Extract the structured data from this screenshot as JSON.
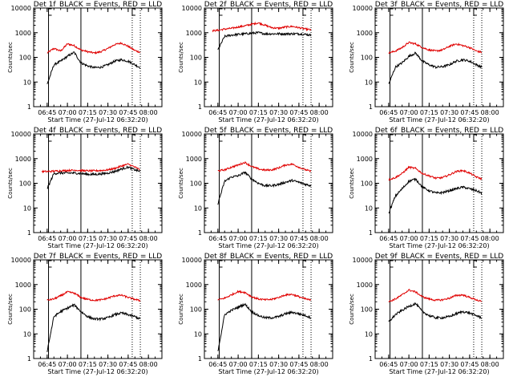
{
  "chart_data": [
    {
      "type": "line",
      "title": "Det 1f_BLACK = Events, RED = LLD",
      "xlabel": "Start Time (27-Jul-12 06:32:20)",
      "ylabel": "Counts/sec",
      "ylim": [
        1,
        10000
      ],
      "yscale": "log",
      "yticks": [
        "1",
        "10",
        "100",
        "1000",
        "10000"
      ],
      "xticks": [
        "06:45",
        "07:00",
        "07:15",
        "07:30",
        "07:45",
        "08:00"
      ],
      "x": [
        "06:41",
        "06:45",
        "06:50",
        "06:55",
        "07:00",
        "07:05",
        "07:10",
        "07:15",
        "07:20",
        "07:25",
        "07:30",
        "07:35",
        "07:40",
        "07:45",
        "07:50",
        "07:54"
      ],
      "series": [
        {
          "name": "LLD",
          "color": "#e00000",
          "values": [
            null,
            150,
            230,
            180,
            350,
            300,
            200,
            170,
            150,
            170,
            230,
            330,
            380,
            280,
            190,
            160
          ]
        },
        {
          "name": "Events",
          "color": "#000000",
          "values": [
            null,
            8,
            50,
            70,
            110,
            160,
            60,
            45,
            38,
            40,
            50,
            70,
            80,
            70,
            50,
            38
          ]
        }
      ],
      "vlines_solid": [
        "06:46",
        "07:10"
      ],
      "vlines_dotted": [
        "07:48",
        "07:54"
      ],
      "markers": [
        "S",
        "E"
      ]
    },
    {
      "type": "line",
      "title": "Det 2f_BLACK = Events, RED = LLD",
      "xlabel": "Start Time (27-Jul-12 06:32:20)",
      "ylabel": "Counts/sec",
      "ylim": [
        1,
        10000
      ],
      "yscale": "log",
      "yticks": [
        "1",
        "10",
        "100",
        "1000",
        "10000"
      ],
      "xticks": [
        "06:45",
        "07:00",
        "07:15",
        "07:30",
        "07:45",
        "08:00"
      ],
      "x": [
        "06:41",
        "06:45",
        "06:50",
        "06:55",
        "07:00",
        "07:05",
        "07:10",
        "07:15",
        "07:20",
        "07:25",
        "07:30",
        "07:35",
        "07:40",
        "07:45",
        "07:50",
        "07:54"
      ],
      "series": [
        {
          "name": "LLD",
          "color": "#e00000",
          "values": [
            1200,
            1250,
            1400,
            1500,
            1700,
            1900,
            2200,
            2500,
            2000,
            1600,
            1500,
            1700,
            1800,
            1600,
            1400,
            1300
          ]
        },
        {
          "name": "Events",
          "color": "#000000",
          "values": [
            null,
            200,
            700,
            800,
            850,
            900,
            950,
            1000,
            900,
            900,
            900,
            900,
            900,
            900,
            850,
            800
          ]
        }
      ],
      "vlines_solid": [
        "06:46",
        "07:10"
      ],
      "vlines_dotted": [
        "07:48",
        "07:54"
      ],
      "markers": [
        "S",
        "E"
      ]
    },
    {
      "type": "line",
      "title": "Det 3f_BLACK = Events, RED = LLD",
      "xlabel": "Start Time (27-Jul-12 06:32:20)",
      "ylabel": "Counts/sec",
      "ylim": [
        1,
        10000
      ],
      "yscale": "log",
      "yticks": [
        "1",
        "10",
        "100",
        "1000",
        "10000"
      ],
      "xticks": [
        "06:45",
        "07:00",
        "07:15",
        "07:30",
        "07:45",
        "08:00"
      ],
      "x": [
        "06:41",
        "06:45",
        "06:50",
        "06:55",
        "07:00",
        "07:05",
        "07:10",
        "07:15",
        "07:20",
        "07:25",
        "07:30",
        "07:35",
        "07:40",
        "07:45",
        "07:50",
        "07:54"
      ],
      "series": [
        {
          "name": "LLD",
          "color": "#e00000",
          "values": [
            null,
            150,
            180,
            250,
            400,
            350,
            250,
            200,
            180,
            200,
            280,
            350,
            300,
            250,
            180,
            160
          ]
        },
        {
          "name": "Events",
          "color": "#000000",
          "values": [
            null,
            8,
            40,
            60,
            110,
            150,
            70,
            50,
            40,
            42,
            50,
            70,
            80,
            70,
            50,
            40
          ]
        }
      ],
      "vlines_solid": [
        "06:46",
        "07:10"
      ],
      "vlines_dotted": [
        "07:48",
        "07:54"
      ],
      "markers": [
        "S",
        "E"
      ]
    },
    {
      "type": "line",
      "title": "Det 4f_BLACK = Events, RED = LLD",
      "xlabel": "Start Time (27-Jul-12 06:32:20)",
      "ylabel": "Counts/sec",
      "ylim": [
        1,
        10000
      ],
      "yscale": "log",
      "yticks": [
        "1",
        "10",
        "100",
        "1000",
        "10000"
      ],
      "xticks": [
        "06:45",
        "07:00",
        "07:15",
        "07:30",
        "07:45",
        "08:00"
      ],
      "x": [
        "06:41",
        "06:45",
        "06:50",
        "06:55",
        "07:00",
        "07:05",
        "07:10",
        "07:15",
        "07:20",
        "07:25",
        "07:30",
        "07:35",
        "07:40",
        "07:45",
        "07:50",
        "07:54"
      ],
      "series": [
        {
          "name": "LLD",
          "color": "#e00000",
          "values": [
            300,
            300,
            310,
            320,
            330,
            340,
            330,
            320,
            320,
            330,
            350,
            400,
            500,
            600,
            450,
            350
          ]
        },
        {
          "name": "Events",
          "color": "#000000",
          "values": [
            null,
            60,
            250,
            260,
            260,
            260,
            250,
            230,
            230,
            240,
            260,
            300,
            380,
            450,
            350,
            300
          ]
        }
      ],
      "vlines_solid": [
        "06:46",
        "07:10"
      ],
      "vlines_dotted": [
        "07:48",
        "07:54"
      ],
      "markers": [
        "S",
        "E"
      ]
    },
    {
      "type": "line",
      "title": "Det 5f_BLACK = Events, RED = LLD",
      "xlabel": "Start Time (27-Jul-12 06:32:20)",
      "ylabel": "Counts/sec",
      "ylim": [
        1,
        10000
      ],
      "yscale": "log",
      "yticks": [
        "1",
        "10",
        "100",
        "1000",
        "10000"
      ],
      "xticks": [
        "06:45",
        "07:00",
        "07:15",
        "07:30",
        "07:45",
        "08:00"
      ],
      "x": [
        "06:41",
        "06:45",
        "06:50",
        "06:55",
        "07:00",
        "07:05",
        "07:10",
        "07:15",
        "07:20",
        "07:25",
        "07:30",
        "07:35",
        "07:40",
        "07:45",
        "07:50",
        "07:54"
      ],
      "series": [
        {
          "name": "LLD",
          "color": "#e00000",
          "values": [
            null,
            320,
            350,
            450,
            550,
            700,
            480,
            380,
            340,
            350,
            420,
            550,
            600,
            450,
            350,
            300
          ]
        },
        {
          "name": "Events",
          "color": "#000000",
          "values": [
            null,
            15,
            120,
            180,
            200,
            280,
            150,
            100,
            80,
            80,
            90,
            110,
            130,
            110,
            90,
            80
          ]
        }
      ],
      "vlines_solid": [
        "06:46",
        "07:10"
      ],
      "vlines_dotted": [
        "07:48",
        "07:54"
      ],
      "markers": [
        "S",
        "E"
      ]
    },
    {
      "type": "line",
      "title": "Det 6f_BLACK = Events, RED = LLD",
      "xlabel": "Start Time (27-Jul-12 06:32:20)",
      "ylabel": "Counts/sec",
      "ylim": [
        1,
        10000
      ],
      "yscale": "log",
      "yticks": [
        "1",
        "10",
        "100",
        "1000",
        "10000"
      ],
      "xticks": [
        "06:45",
        "07:00",
        "07:15",
        "07:30",
        "07:45",
        "08:00"
      ],
      "x": [
        "06:41",
        "06:45",
        "06:50",
        "06:55",
        "07:00",
        "07:05",
        "07:10",
        "07:15",
        "07:20",
        "07:25",
        "07:30",
        "07:35",
        "07:40",
        "07:45",
        "07:50",
        "07:54"
      ],
      "series": [
        {
          "name": "LLD",
          "color": "#e00000",
          "values": [
            null,
            140,
            170,
            250,
            450,
            400,
            250,
            200,
            160,
            170,
            220,
            300,
            330,
            260,
            180,
            150
          ]
        },
        {
          "name": "Events",
          "color": "#000000",
          "values": [
            null,
            6,
            30,
            60,
            120,
            150,
            70,
            50,
            40,
            42,
            50,
            60,
            70,
            60,
            50,
            40
          ]
        }
      ],
      "vlines_solid": [
        "06:46",
        "07:10"
      ],
      "vlines_dotted": [
        "07:48",
        "07:54"
      ],
      "markers": [
        "S",
        "E"
      ]
    },
    {
      "type": "line",
      "title": "Det 7f_BLACK = Events, RED = LLD",
      "xlabel": "Start Time (27-Jul-12 06:32:20)",
      "ylabel": "Counts/sec",
      "ylim": [
        1,
        10000
      ],
      "yscale": "log",
      "yticks": [
        "1",
        "10",
        "100",
        "1000",
        "10000"
      ],
      "xticks": [
        "06:45",
        "07:00",
        "07:15",
        "07:30",
        "07:45",
        "08:00"
      ],
      "x": [
        "06:41",
        "06:45",
        "06:50",
        "06:55",
        "07:00",
        "07:05",
        "07:10",
        "07:15",
        "07:20",
        "07:25",
        "07:30",
        "07:35",
        "07:40",
        "07:45",
        "07:50",
        "07:54"
      ],
      "series": [
        {
          "name": "LLD",
          "color": "#e00000",
          "values": [
            null,
            230,
            260,
            350,
            500,
            450,
            300,
            250,
            230,
            240,
            280,
            350,
            370,
            300,
            250,
            220
          ]
        },
        {
          "name": "Events",
          "color": "#000000",
          "values": [
            null,
            2,
            50,
            80,
            110,
            150,
            80,
            50,
            40,
            40,
            45,
            60,
            70,
            60,
            50,
            40
          ]
        }
      ],
      "vlines_solid": [
        "06:46",
        "07:10"
      ],
      "vlines_dotted": [
        "07:48",
        "07:54"
      ],
      "markers": [
        "S",
        "E"
      ]
    },
    {
      "type": "line",
      "title": "Det 8f_BLACK = Events, RED = LLD",
      "xlabel": "Start Time (27-Jul-12 06:32:20)",
      "ylabel": "Counts/sec",
      "ylim": [
        1,
        10000
      ],
      "yscale": "log",
      "yticks": [
        "1",
        "10",
        "100",
        "1000",
        "10000"
      ],
      "xticks": [
        "06:45",
        "07:00",
        "07:15",
        "07:30",
        "07:45",
        "08:00"
      ],
      "x": [
        "06:41",
        "06:45",
        "06:50",
        "06:55",
        "07:00",
        "07:05",
        "07:10",
        "07:15",
        "07:20",
        "07:25",
        "07:30",
        "07:35",
        "07:40",
        "07:45",
        "07:50",
        "07:54"
      ],
      "series": [
        {
          "name": "LLD",
          "color": "#e00000",
          "values": [
            null,
            240,
            280,
            380,
            520,
            480,
            320,
            260,
            240,
            250,
            300,
            380,
            400,
            320,
            260,
            230
          ]
        },
        {
          "name": "Events",
          "color": "#000000",
          "values": [
            null,
            2,
            60,
            90,
            120,
            160,
            80,
            55,
            45,
            45,
            50,
            65,
            75,
            65,
            55,
            45
          ]
        }
      ],
      "vlines_solid": [
        "06:46",
        "07:10"
      ],
      "vlines_dotted": [
        "07:48",
        "07:54"
      ],
      "markers": [
        "S",
        "E"
      ]
    },
    {
      "type": "line",
      "title": "Det 9f_BLACK = Events, RED = LLD",
      "xlabel": "Start Time (27-Jul-12 06:32:20)",
      "ylabel": "Counts/sec",
      "ylim": [
        1,
        10000
      ],
      "yscale": "log",
      "yticks": [
        "1",
        "10",
        "100",
        "1000",
        "10000"
      ],
      "xticks": [
        "06:45",
        "07:00",
        "07:15",
        "07:30",
        "07:45",
        "08:00"
      ],
      "x": [
        "06:41",
        "06:45",
        "06:50",
        "06:55",
        "07:00",
        "07:05",
        "07:10",
        "07:15",
        "07:20",
        "07:25",
        "07:30",
        "07:35",
        "07:40",
        "07:45",
        "07:50",
        "07:54"
      ],
      "series": [
        {
          "name": "LLD",
          "color": "#e00000",
          "values": [
            null,
            200,
            260,
            380,
            600,
            500,
            320,
            260,
            230,
            240,
            280,
            360,
            380,
            300,
            240,
            200
          ]
        },
        {
          "name": "Events",
          "color": "#000000",
          "values": [
            null,
            30,
            60,
            90,
            130,
            170,
            80,
            55,
            45,
            45,
            50,
            65,
            80,
            70,
            55,
            45
          ]
        }
      ],
      "vlines_solid": [
        "06:46",
        "07:10"
      ],
      "vlines_dotted": [
        "07:48",
        "07:54"
      ],
      "markers": [
        "S",
        "E"
      ]
    }
  ]
}
